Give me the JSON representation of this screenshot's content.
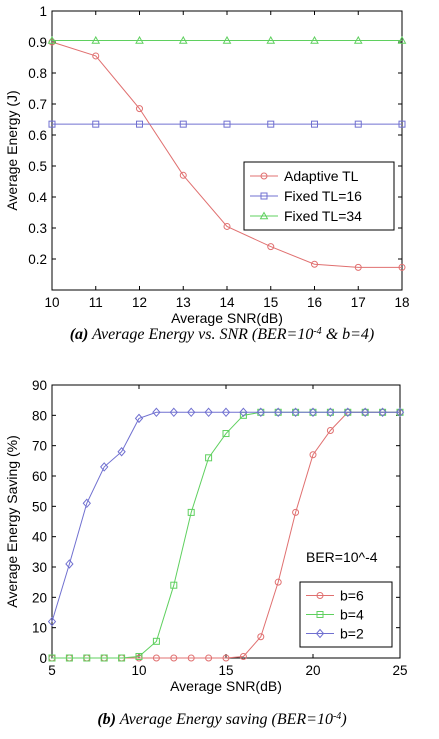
{
  "chart_data": [
    {
      "type": "line",
      "xlabel": "Average SNR(dB)",
      "ylabel": "Average Energy (J)",
      "xlim": [
        10,
        18
      ],
      "ylim": [
        0.1,
        1
      ],
      "xticks": [
        "10",
        "11",
        "12",
        "13",
        "14",
        "15",
        "16",
        "17",
        "18"
      ],
      "yticks": [
        "0.2",
        "0.3",
        "0.4",
        "0.5",
        "0.6",
        "0.7",
        "0.8",
        "0.9",
        "1"
      ],
      "x": [
        10,
        11,
        12,
        13,
        14,
        15,
        16,
        17,
        18
      ],
      "series": [
        {
          "name": "Adaptive TL",
          "color": "#e07070",
          "marker": "circle",
          "values": [
            0.9,
            0.855,
            0.685,
            0.47,
            0.305,
            0.24,
            0.183,
            0.173,
            0.173
          ]
        },
        {
          "name": "Fixed TL=16",
          "color": "#7070d0",
          "marker": "square",
          "values": [
            0.635,
            0.635,
            0.635,
            0.635,
            0.635,
            0.635,
            0.635,
            0.635,
            0.635
          ]
        },
        {
          "name": "Fixed TL=34",
          "color": "#5fd05f",
          "marker": "triangle",
          "values": [
            0.905,
            0.905,
            0.905,
            0.905,
            0.905,
            0.905,
            0.905,
            0.905,
            0.905
          ]
        }
      ],
      "legend": "right",
      "caption": {
        "label": "(a)",
        "text": " Average Energy vs. SNR (BER=10",
        "sup": "-4",
        "tail": " & b=4)"
      }
    },
    {
      "type": "line",
      "xlabel": "Average SNR(dB)",
      "ylabel": "Average Energy Saving (%)",
      "xlim": [
        5,
        25
      ],
      "ylim": [
        0,
        90
      ],
      "xticks": [
        "5",
        "10",
        "15",
        "20",
        "25"
      ],
      "yticks": [
        "0",
        "10",
        "20",
        "30",
        "40",
        "50",
        "60",
        "70",
        "80",
        "90"
      ],
      "annotation": "BER=10^-4",
      "series": [
        {
          "name": "b=6",
          "color": "#e07070",
          "marker": "circle",
          "x": [
            5,
            6,
            7,
            8,
            9,
            10,
            11,
            12,
            13,
            14,
            15,
            16,
            17,
            18,
            19,
            20,
            21,
            22,
            23,
            24,
            25
          ],
          "values": [
            0,
            0,
            0,
            0,
            0,
            0,
            0,
            0,
            0,
            0,
            0,
            0.5,
            7,
            25,
            48,
            67,
            75,
            81,
            81,
            81,
            81
          ]
        },
        {
          "name": "b=4",
          "color": "#5fd05f",
          "marker": "square",
          "x": [
            5,
            6,
            7,
            8,
            9,
            10,
            11,
            12,
            13,
            14,
            15,
            16,
            17,
            18,
            19,
            20,
            21,
            22,
            23,
            24,
            25
          ],
          "values": [
            0,
            0,
            0,
            0,
            0,
            0.5,
            5.5,
            24,
            48,
            66,
            74,
            80,
            81,
            81,
            81,
            81,
            81,
            81,
            81,
            81,
            81
          ]
        },
        {
          "name": "b=2",
          "color": "#7070d0",
          "marker": "diamond",
          "x": [
            5,
            6,
            7,
            8,
            9,
            10,
            11,
            12,
            13,
            14,
            15,
            16,
            17,
            18,
            19,
            20,
            21,
            22,
            23,
            24,
            25
          ],
          "values": [
            12,
            31,
            51,
            63,
            68,
            79,
            81,
            81,
            81,
            81,
            81,
            81,
            81,
            81,
            81,
            81,
            81,
            81,
            81,
            81,
            81
          ]
        }
      ],
      "legend": "bottom-right",
      "caption": {
        "label": "(b)",
        "text": " Average Energy saving (BER=10",
        "sup": "-4",
        "tail": ")"
      }
    }
  ]
}
